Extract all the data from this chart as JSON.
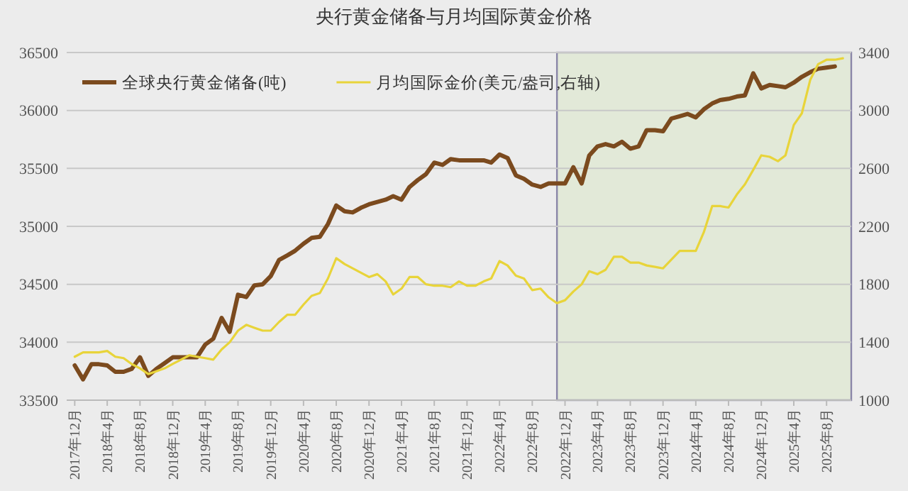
{
  "chart_data": {
    "type": "line",
    "title": "央行黄金储备与月均国际黄金价格",
    "x": [
      "2017-12",
      "2018-01",
      "2018-02",
      "2018-03",
      "2018-04",
      "2018-05",
      "2018-06",
      "2018-07",
      "2018-08",
      "2018-09",
      "2018-10",
      "2018-11",
      "2018-12",
      "2019-01",
      "2019-02",
      "2019-03",
      "2019-04",
      "2019-05",
      "2019-06",
      "2019-07",
      "2019-08",
      "2019-09",
      "2019-10",
      "2019-11",
      "2019-12",
      "2020-01",
      "2020-02",
      "2020-03",
      "2020-04",
      "2020-05",
      "2020-06",
      "2020-07",
      "2020-08",
      "2020-09",
      "2020-10",
      "2020-11",
      "2020-12",
      "2021-01",
      "2021-02",
      "2021-03",
      "2021-04",
      "2021-05",
      "2021-06",
      "2021-07",
      "2021-08",
      "2021-09",
      "2021-10",
      "2021-11",
      "2021-12",
      "2022-01",
      "2022-02",
      "2022-03",
      "2022-04",
      "2022-05",
      "2022-06",
      "2022-07",
      "2022-08",
      "2022-09",
      "2022-10",
      "2022-11",
      "2022-12",
      "2023-01",
      "2023-02",
      "2023-03",
      "2023-04",
      "2023-05",
      "2023-06",
      "2023-07",
      "2023-08",
      "2023-09",
      "2023-10",
      "2023-11",
      "2023-12",
      "2024-01",
      "2024-02",
      "2024-03",
      "2024-04",
      "2024-05",
      "2024-06",
      "2024-07",
      "2024-08",
      "2024-09",
      "2024-10",
      "2024-11",
      "2024-12",
      "2025-01",
      "2025-02",
      "2025-03",
      "2025-04",
      "2025-05",
      "2025-06",
      "2025-07",
      "2025-08",
      "2025-09",
      "2025-10"
    ],
    "series": [
      {
        "name": "全球央行黄金储备(吨)",
        "color": "#7b4a1e",
        "values": [
          33800,
          33680,
          33810,
          33810,
          33800,
          33745,
          33745,
          33770,
          33870,
          33710,
          33770,
          33820,
          33870,
          33870,
          33870,
          33870,
          33980,
          34030,
          34210,
          34090,
          34410,
          34390,
          34490,
          34500,
          34570,
          34710,
          34750,
          34790,
          34850,
          34900,
          34910,
          35020,
          35180,
          35130,
          35120,
          35160,
          35190,
          35210,
          35230,
          35260,
          35230,
          35340,
          35400,
          35450,
          35550,
          35530,
          35580,
          35570,
          35570,
          35570,
          35570,
          35550,
          35620,
          35590,
          35440,
          35410,
          35360,
          35340,
          35370,
          35370,
          35370,
          35510,
          35370,
          35610,
          35690,
          35710,
          35690,
          35730,
          35670,
          35690,
          35830,
          35830,
          35820,
          35930,
          35950,
          35970,
          35940,
          36010,
          36060,
          36090,
          36100,
          36120,
          36130,
          36320,
          36190,
          36220,
          36210,
          36200,
          36240,
          36290,
          36330,
          36360,
          36370,
          36380,
          null
        ]
      },
      {
        "name": "月均国际金价(美元/盎司,右轴)",
        "color": "#e8d43a",
        "axis": "y2",
        "values": [
          1300,
          1330,
          1330,
          1330,
          1340,
          1300,
          1290,
          1250,
          1220,
          1180,
          1200,
          1220,
          1250,
          1280,
          1310,
          1300,
          1290,
          1280,
          1350,
          1400,
          1480,
          1520,
          1500,
          1480,
          1480,
          1540,
          1590,
          1590,
          1660,
          1720,
          1740,
          1840,
          1980,
          1940,
          1910,
          1880,
          1850,
          1870,
          1820,
          1730,
          1770,
          1850,
          1850,
          1800,
          1790,
          1790,
          1780,
          1820,
          1790,
          1790,
          1820,
          1840,
          1960,
          1930,
          1860,
          1840,
          1760,
          1770,
          1710,
          1670,
          1690,
          1750,
          1800,
          1890,
          1870,
          1900,
          1990,
          1990,
          1950,
          1950,
          1930,
          1920,
          1910,
          1970,
          2030,
          2030,
          2030,
          2160,
          2340,
          2340,
          2330,
          2420,
          2490,
          2590,
          2690,
          2680,
          2650,
          2690,
          2900,
          2980,
          3210,
          3320,
          3350,
          3350,
          3360
        ]
      }
    ],
    "xlim": [
      "2017-11",
      "2025-11"
    ],
    "xticks": [
      {
        "value": "2017-12",
        "label": "2017年12月"
      },
      {
        "value": "2018-04",
        "label": "2018年4月"
      },
      {
        "value": "2018-08",
        "label": "2018年8月"
      },
      {
        "value": "2018-12",
        "label": "2018年12月"
      },
      {
        "value": "2019-04",
        "label": "2019年4月"
      },
      {
        "value": "2019-08",
        "label": "2019年8月"
      },
      {
        "value": "2019-12",
        "label": "2019年12月"
      },
      {
        "value": "2020-04",
        "label": "2020年4月"
      },
      {
        "value": "2020-08",
        "label": "2020年8月"
      },
      {
        "value": "2020-12",
        "label": "2020年12月"
      },
      {
        "value": "2021-04",
        "label": "2021年4月"
      },
      {
        "value": "2021-08",
        "label": "2021年8月"
      },
      {
        "value": "2021-12",
        "label": "2021年12月"
      },
      {
        "value": "2022-04",
        "label": "2022年4月"
      },
      {
        "value": "2022-08",
        "label": "2022年8月"
      },
      {
        "value": "2022-12",
        "label": "2022年12月"
      },
      {
        "value": "2023-04",
        "label": "2023年4月"
      },
      {
        "value": "2023-08",
        "label": "2023年8月"
      },
      {
        "value": "2023-12",
        "label": "2023年12月"
      },
      {
        "value": "2024-04",
        "label": "2024年4月"
      },
      {
        "value": "2024-08",
        "label": "2024年8月"
      },
      {
        "value": "2024-12",
        "label": "2024年12月"
      },
      {
        "value": "2025-04",
        "label": "2025年4月"
      },
      {
        "value": "2025-08",
        "label": "2025年8月"
      }
    ],
    "ylim": [
      33500,
      36500
    ],
    "yticks": [
      33500,
      34000,
      34500,
      35000,
      35500,
      36000,
      36500
    ],
    "y2lim": [
      1000,
      3400
    ],
    "y2ticks": [
      1000,
      1400,
      1800,
      2200,
      2600,
      3000,
      3400
    ],
    "bands": [
      {
        "axis": "x",
        "from": "2022-11",
        "to": "2025-11",
        "color": "#e2e9d8"
      }
    ],
    "grid": "y",
    "legend": "top"
  }
}
